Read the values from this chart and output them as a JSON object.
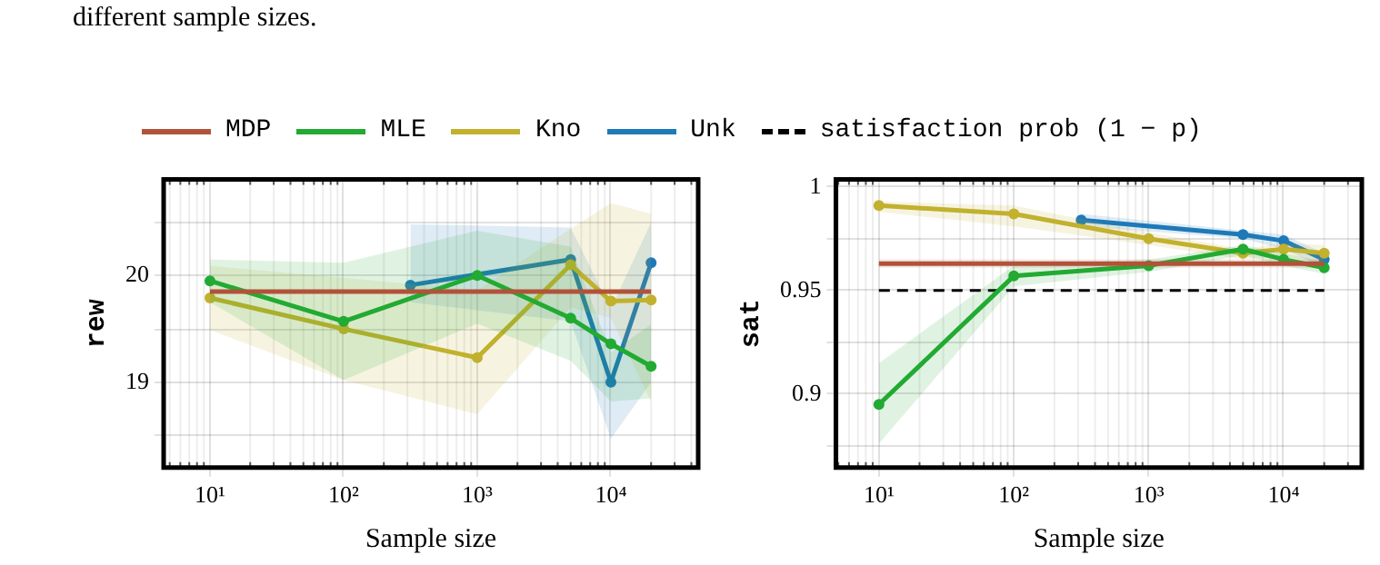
{
  "chart_data": [
    {
      "type": "line",
      "annotations": [
        "different sample sizes."
      ],
      "xlabel": "Sample size",
      "ylabel": "rew",
      "log": "x",
      "grid": true,
      "legend": "top",
      "marker": "circle",
      "xlim": [
        4.5,
        45000
      ],
      "ylim": [
        18.2,
        20.9
      ],
      "xticks": [
        {
          "value": 10,
          "label": "10¹"
        },
        {
          "value": 100,
          "label": "10²"
        },
        {
          "value": 1000,
          "label": "10³"
        },
        {
          "value": 10000,
          "label": "10⁴"
        }
      ],
      "yticks": [
        {
          "value": 18.5,
          "label": null
        },
        19,
        {
          "value": 19.5,
          "label": null
        },
        20,
        {
          "value": 20.5,
          "label": null
        }
      ],
      "x": [
        10,
        100,
        1000,
        5000,
        10000,
        20000
      ],
      "series": [
        {
          "name": "MDP",
          "color": "#b0533a",
          "marker": "none",
          "values": [
            19.85,
            19.85,
            19.85,
            19.85,
            19.85,
            19.85
          ]
        },
        {
          "name": "MLE",
          "color": "#22aa33",
          "values": [
            19.95,
            19.57,
            20.0,
            19.6,
            19.36,
            19.15
          ],
          "lower": [
            19.75,
            19.02,
            19.55,
            19.2,
            18.82,
            18.85
          ],
          "upper": [
            20.15,
            20.12,
            20.42,
            20.27,
            19.28,
            19.54
          ]
        },
        {
          "name": "Kno",
          "color": "#c2b12e",
          "values": [
            19.79,
            19.5,
            19.23,
            20.1,
            19.76,
            19.77
          ],
          "lower": [
            19.49,
            19.02,
            18.7,
            19.7,
            19.6,
            18.82
          ],
          "upper": [
            20.09,
            19.98,
            19.86,
            20.44,
            20.68,
            20.58
          ]
        },
        {
          "name": "Unk",
          "color": "#1f7ab8",
          "x": [
            316,
            5000,
            10000,
            20000
          ],
          "values": [
            19.91,
            20.15,
            19.0,
            20.12
          ],
          "lower": [
            19.75,
            19.57,
            18.47,
            19.0
          ],
          "upper": [
            20.48,
            20.45,
            19.69,
            20.5
          ]
        }
      ]
    },
    {
      "type": "line",
      "xlabel": "Sample size",
      "ylabel": "sat",
      "log": "x",
      "grid": true,
      "marker": "circle",
      "xlim": [
        4.8,
        38000
      ],
      "ylim": [
        0.8645,
        1.0036
      ],
      "xticks": [
        {
          "value": 10,
          "label": "10¹"
        },
        {
          "value": 100,
          "label": "10²"
        },
        {
          "value": 1000,
          "label": "10³"
        },
        {
          "value": 10000,
          "label": "10⁴"
        }
      ],
      "yticks": [
        {
          "value": 0.875,
          "label": null
        },
        0.9,
        {
          "value": 0.925,
          "label": null
        },
        0.95,
        {
          "value": 0.975,
          "label": null
        },
        1
      ],
      "x": [
        10,
        100,
        1000,
        5000,
        10000,
        20000
      ],
      "series": [
        {
          "color": "#b0533a",
          "marker": "none",
          "values": [
            0.963,
            0.963,
            0.963,
            0.963,
            0.963,
            0.963
          ],
          "lower": [
            0.961,
            0.961,
            0.961,
            0.961,
            0.961,
            0.961
          ],
          "upper": [
            0.965,
            0.965,
            0.965,
            0.965,
            0.965,
            0.965
          ]
        },
        {
          "color": "#22aa33",
          "values": [
            0.895,
            0.957,
            0.962,
            0.97,
            0.965,
            0.961
          ],
          "lower": [
            0.876,
            0.952,
            0.959,
            0.967,
            0.962,
            0.958
          ],
          "upper": [
            0.915,
            0.962,
            0.965,
            0.972,
            0.968,
            0.964
          ]
        },
        {
          "color": "#c2b12e",
          "values": [
            0.991,
            0.987,
            0.975,
            0.968,
            0.97,
            0.968
          ],
          "lower": [
            0.988,
            0.981,
            0.972,
            0.965,
            0.966,
            0.964
          ],
          "upper": [
            0.993,
            0.991,
            0.978,
            0.97,
            0.973,
            0.972
          ]
        },
        {
          "color": "#1f7ab8",
          "x": [
            316,
            5000,
            10000,
            20000
          ],
          "values": [
            0.984,
            0.977,
            0.974,
            0.965
          ],
          "lower": [
            0.981,
            0.975,
            0.97,
            0.961
          ],
          "upper": [
            0.987,
            0.979,
            0.977,
            0.968
          ]
        }
      ],
      "ref_lines": [
        {
          "axis": "y",
          "value": 0.95,
          "label": "satisfaction prob (1 − p)",
          "color": "#000000",
          "line_style": "dashed"
        }
      ]
    }
  ]
}
